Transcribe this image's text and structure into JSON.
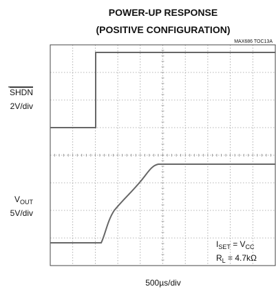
{
  "title": {
    "line1": "POWER-UP RESPONSE",
    "line2": "(POSITIVE CONFIGURATION)"
  },
  "figure_id": "MAX686 TOC13A",
  "channels": [
    {
      "name": "SHDN",
      "scale": "2V/div"
    },
    {
      "name": "V",
      "subscript": "OUT",
      "scale": "5V/div"
    }
  ],
  "time_scale": "500µs/div",
  "conditions": [
    {
      "a": "I",
      "a_sub": "SET",
      "b": " = V",
      "b_sub": "CC"
    },
    {
      "a": "R",
      "a_sub": "L",
      "b": " = 4.7kΩ"
    }
  ]
}
